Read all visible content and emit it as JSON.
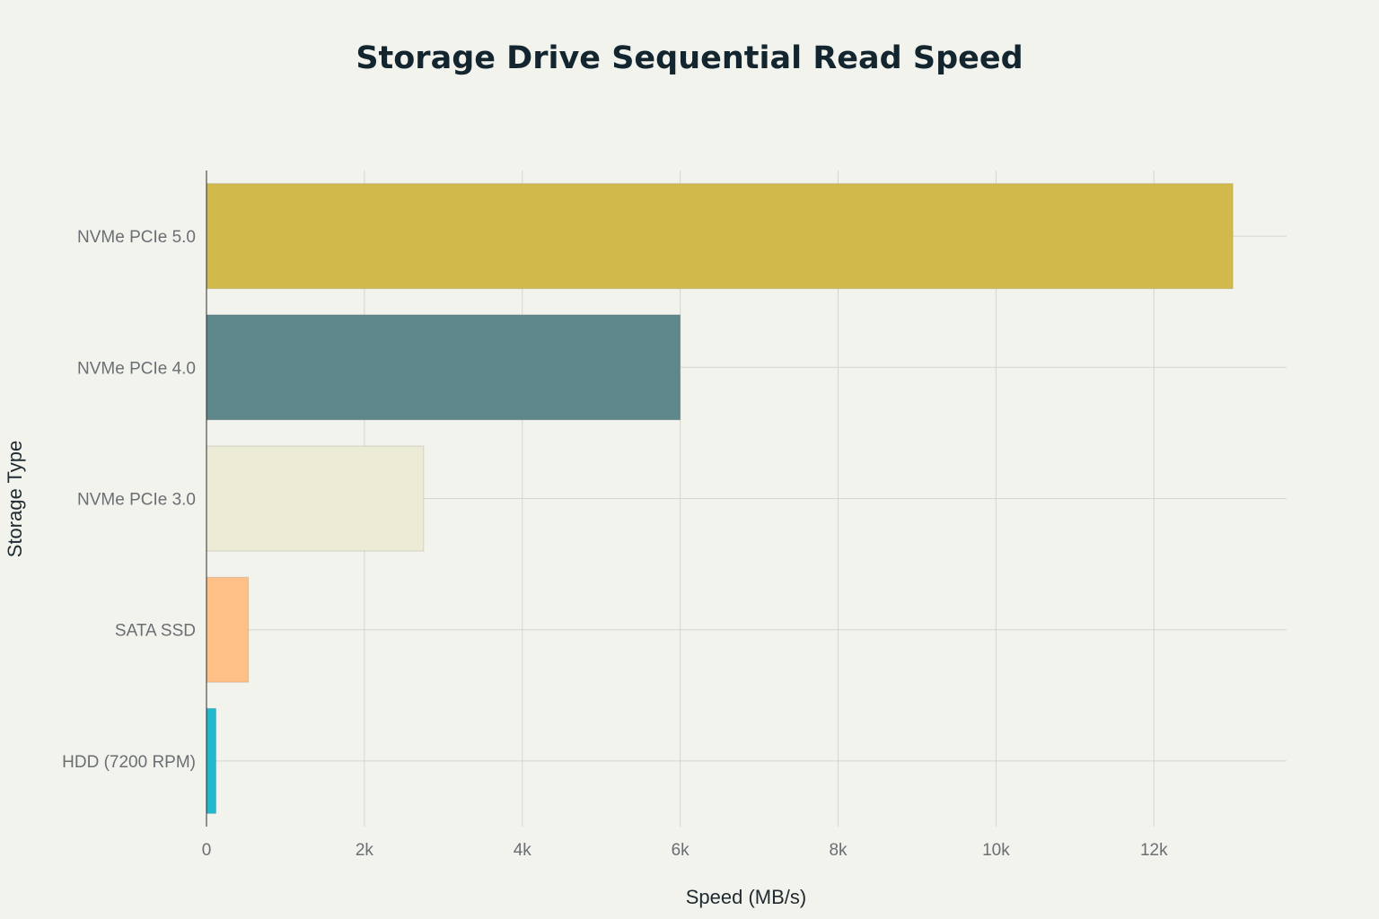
{
  "chart_data": {
    "type": "bar",
    "orientation": "horizontal",
    "title": "Storage Drive Sequential Read Speed",
    "xlabel": "Speed (MB/s)",
    "ylabel": "Storage Type",
    "categories": [
      "NVMe PCIe 5.0",
      "NVMe PCIe 4.0",
      "NVMe PCIe 3.0",
      "SATA SSD",
      "HDD (7200 RPM)"
    ],
    "values": [
      13000,
      6000,
      2750,
      530,
      120
    ],
    "colors": [
      "#d2b94c",
      "#5e878c",
      "#ecebd6",
      "#fec086",
      "#1fb8cd"
    ],
    "xlim": [
      0,
      13680
    ],
    "xticks": [
      {
        "value": 0,
        "label": "0"
      },
      {
        "value": 2000,
        "label": "2k"
      },
      {
        "value": 4000,
        "label": "4k"
      },
      {
        "value": 6000,
        "label": "6k"
      },
      {
        "value": 8000,
        "label": "8k"
      },
      {
        "value": 10000,
        "label": "10k"
      },
      {
        "value": 12000,
        "label": "12k"
      }
    ],
    "grid": true,
    "legend": "none"
  }
}
